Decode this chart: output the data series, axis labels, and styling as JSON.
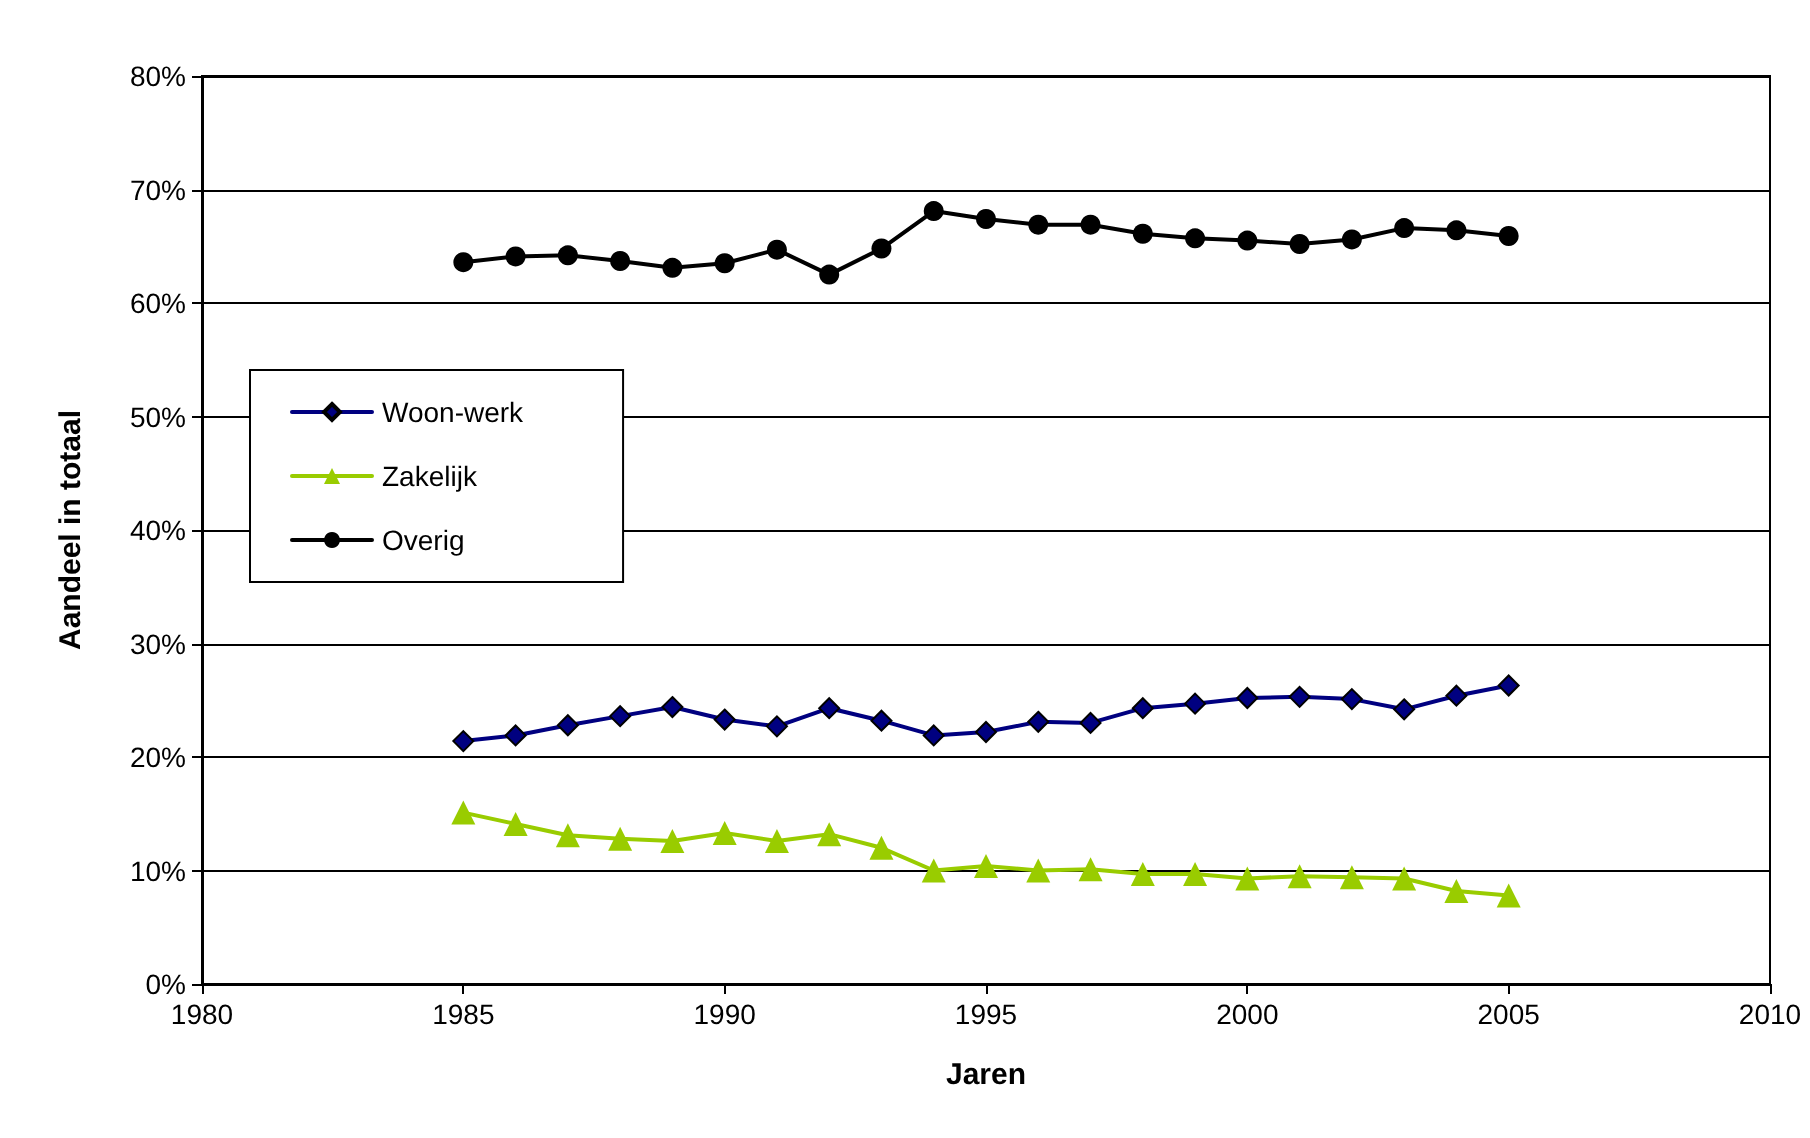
{
  "chart_data": {
    "type": "line",
    "xlabel": "Jaren",
    "ylabel": "Aandeel in totaal",
    "x": [
      1985,
      1986,
      1987,
      1988,
      1989,
      1990,
      1991,
      1992,
      1993,
      1994,
      1995,
      1996,
      1997,
      1998,
      1999,
      2000,
      2001,
      2002,
      2003,
      2004,
      2005
    ],
    "series": [
      {
        "name": "Woon-werk",
        "color": "#000080",
        "marker": "diamond",
        "values": [
          21.4,
          21.9,
          22.8,
          23.6,
          24.4,
          23.3,
          22.7,
          24.3,
          23.2,
          21.9,
          22.2,
          23.1,
          23.0,
          24.3,
          24.7,
          25.2,
          25.3,
          25.1,
          24.2,
          25.4,
          26.3
        ]
      },
      {
        "name": "Zakelijk",
        "color": "#99cc00",
        "marker": "triangle",
        "values": [
          15.1,
          14.1,
          13.1,
          12.8,
          12.6,
          13.3,
          12.6,
          13.2,
          12.0,
          10.0,
          10.4,
          10.0,
          10.1,
          9.7,
          9.7,
          9.3,
          9.5,
          9.4,
          9.3,
          8.2,
          7.8
        ]
      },
      {
        "name": "Overig",
        "color": "#000000",
        "marker": "circle",
        "values": [
          63.6,
          64.1,
          64.2,
          63.7,
          63.1,
          63.5,
          64.7,
          62.5,
          64.8,
          68.1,
          67.4,
          66.9,
          66.9,
          66.1,
          65.7,
          65.5,
          65.2,
          65.6,
          66.6,
          66.4,
          65.9
        ]
      }
    ],
    "xlim": [
      1980,
      2010
    ],
    "xticks": [
      1980,
      1985,
      1990,
      1995,
      2000,
      2005,
      2010
    ],
    "ylim": [
      0,
      80
    ],
    "yticks": [
      {
        "value": 0,
        "label": "0%"
      },
      {
        "value": 10,
        "label": "10%"
      },
      {
        "value": 20,
        "label": "20%"
      },
      {
        "value": 30,
        "label": "30%"
      },
      {
        "value": 40,
        "label": "40%"
      },
      {
        "value": 50,
        "label": "50%"
      },
      {
        "value": 60,
        "label": "60%"
      },
      {
        "value": 70,
        "label": "70%"
      },
      {
        "value": 80,
        "label": "80%"
      }
    ],
    "grid": "y",
    "legend": "left",
    "line_style": "solid"
  }
}
